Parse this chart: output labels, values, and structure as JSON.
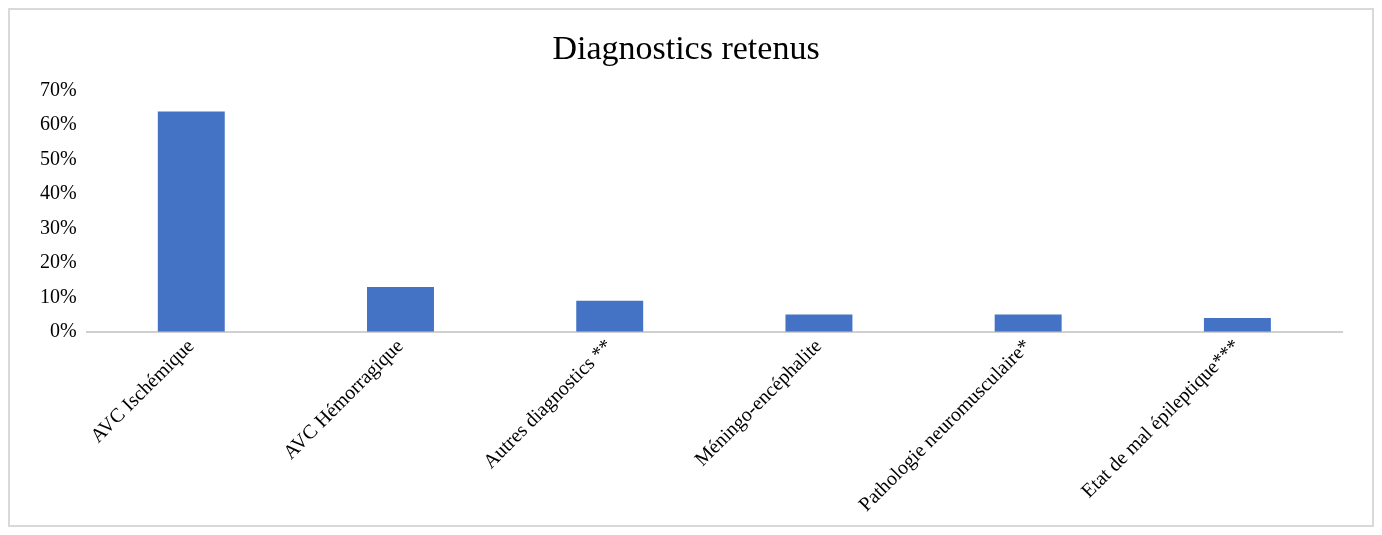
{
  "chart_data": {
    "type": "bar",
    "title": "Diagnostics retenus",
    "categories": [
      "AVC Ischémique",
      "AVC Hémorragique",
      "Autres diagnostics **",
      "Méningo-encéphalite",
      "Pathologie neuromusculaire*",
      "Etat de mal épileptique***"
    ],
    "values": [
      64,
      13,
      9,
      5,
      5,
      4
    ],
    "color": "#4472c4",
    "ylim": [
      0,
      70
    ],
    "yticks": [
      {
        "value": 0,
        "label": "0%"
      },
      {
        "value": 10,
        "label": "10%"
      },
      {
        "value": 20,
        "label": "20%"
      },
      {
        "value": 30,
        "label": "30%"
      },
      {
        "value": 40,
        "label": "40%"
      },
      {
        "value": 50,
        "label": "50%"
      },
      {
        "value": 60,
        "label": "60%"
      },
      {
        "value": 70,
        "label": "70%"
      }
    ],
    "grid": false
  }
}
